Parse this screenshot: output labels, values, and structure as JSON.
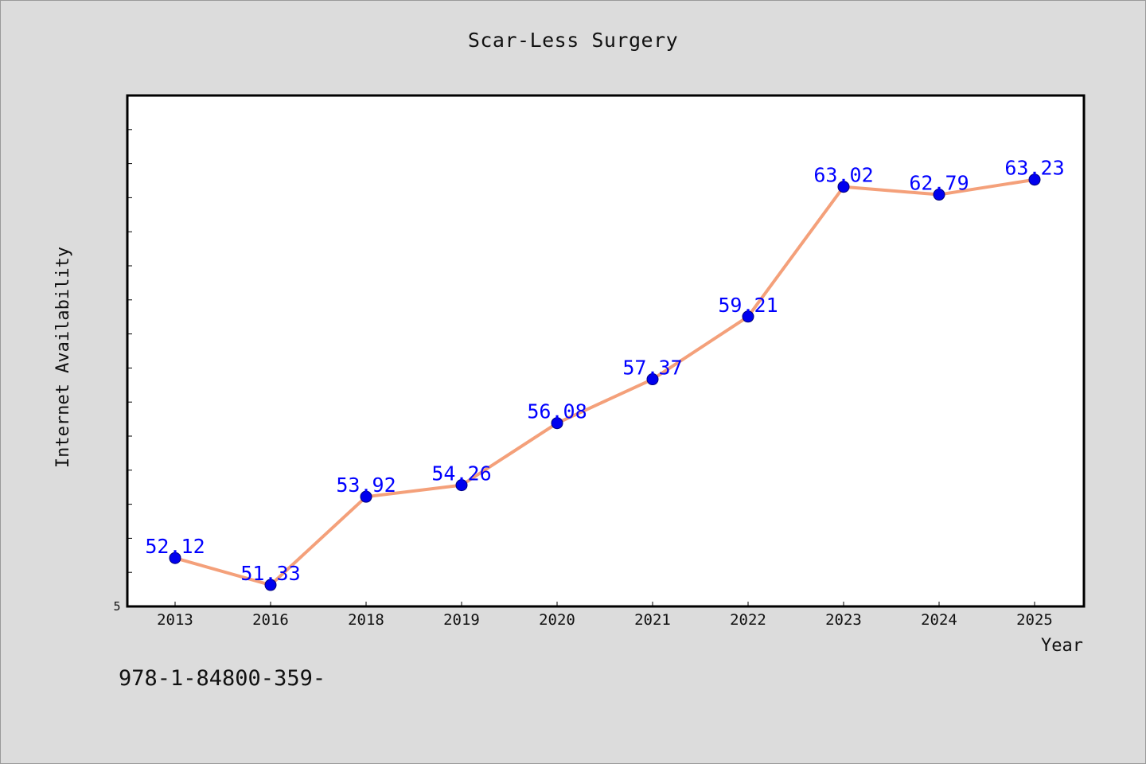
{
  "chart_data": {
    "type": "line",
    "title": "Scar-Less Surgery",
    "xlabel": "Year",
    "ylabel": "Internet Availability",
    "categories": [
      "2013",
      "2016",
      "2018",
      "2019",
      "2020",
      "2021",
      "2022",
      "2023",
      "2024",
      "2025"
    ],
    "series": [
      {
        "values": [
          52.12,
          51.33,
          53.92,
          54.26,
          56.08,
          57.37,
          59.21,
          63.02,
          62.79,
          63.23
        ]
      }
    ],
    "data_labels": [
      "52.12",
      "51.33",
      "53.92",
      "54.26",
      "56.08",
      "57.37",
      "59.21",
      "63.02",
      "62.79",
      "63.23"
    ],
    "ylim": [
      50.7,
      65.7
    ],
    "y_tick_label": "5",
    "grid": false,
    "legend": "none",
    "colors": {
      "line": "#f4a07a",
      "marker": "#0000ee",
      "data_label": "#0000ff",
      "plot_background": "#ffffff",
      "page_background": "#dcdcdc"
    }
  },
  "footer_text": "978-1-84800-359-"
}
